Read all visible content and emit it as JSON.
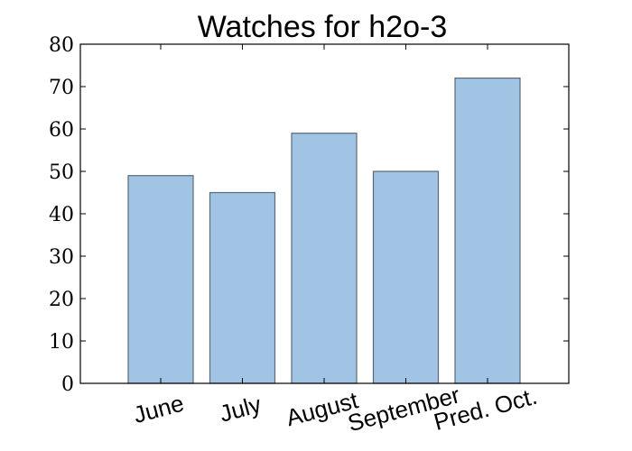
{
  "chart_data": {
    "type": "bar",
    "title": "Watches for h2o-3",
    "xlabel": "",
    "ylabel": "",
    "categories": [
      "June",
      "July",
      "August",
      "September",
      "Pred. Oct."
    ],
    "values": [
      49,
      45,
      59,
      50,
      72
    ],
    "ylim": [
      0,
      80
    ],
    "yticks": [
      0,
      10,
      20,
      30,
      40,
      50,
      60,
      70,
      80
    ],
    "grid": false,
    "bar_color": "#a1c3e4",
    "bar_edge_color": "#5a6a78"
  }
}
